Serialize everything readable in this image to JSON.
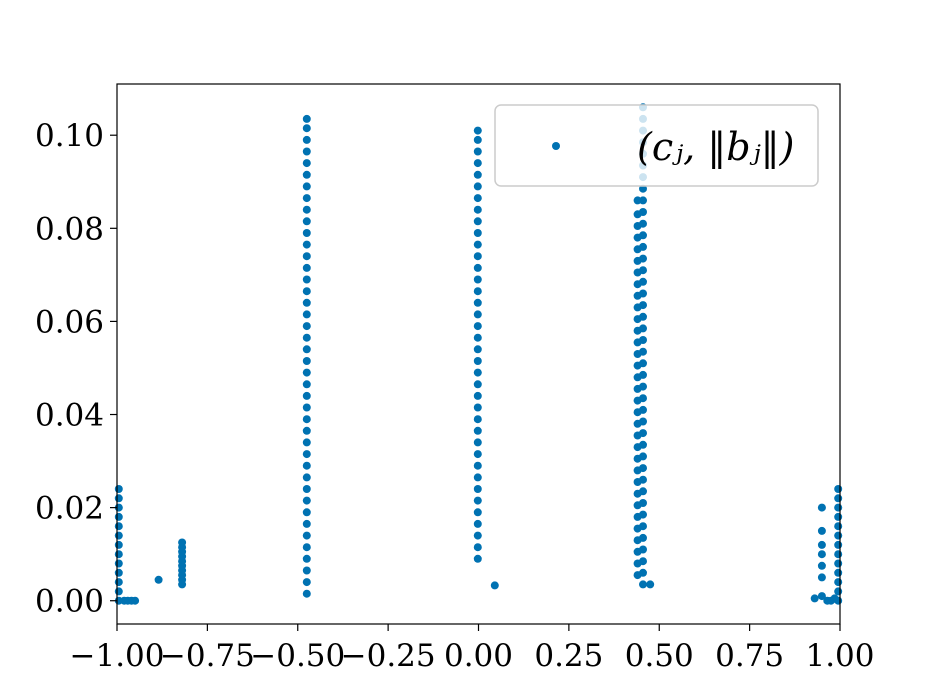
{
  "chart_data": {
    "type": "scatter",
    "title": "",
    "xlabel": "",
    "ylabel": "",
    "xlim": [
      -1.0,
      1.0
    ],
    "ylim": [
      -0.005,
      0.111
    ],
    "grid": false,
    "legend_position": "top-right",
    "marker_color": "#0072b2",
    "x_ticks": [
      -1.0,
      -0.75,
      -0.5,
      -0.25,
      0.0,
      0.25,
      0.5,
      0.75,
      1.0
    ],
    "x_tick_labels": [
      "−1.00",
      "−0.75",
      "−0.50",
      "−0.25",
      "0.00",
      "0.25",
      "0.50",
      "0.75",
      "1.00"
    ],
    "y_ticks": [
      0.0,
      0.02,
      0.04,
      0.06,
      0.08,
      0.1
    ],
    "y_tick_labels": [
      "0.00",
      "0.02",
      "0.04",
      "0.06",
      "0.08",
      "0.10"
    ],
    "series": [
      {
        "name": "(cⱼ, ‖bⱼ‖)",
        "points": [
          [
            -0.995,
            0.0
          ],
          [
            -0.995,
            0.002
          ],
          [
            -0.995,
            0.004
          ],
          [
            -0.995,
            0.006
          ],
          [
            -0.995,
            0.008
          ],
          [
            -0.995,
            0.01
          ],
          [
            -0.995,
            0.012
          ],
          [
            -0.995,
            0.014
          ],
          [
            -0.995,
            0.016
          ],
          [
            -0.995,
            0.018
          ],
          [
            -0.995,
            0.02
          ],
          [
            -0.995,
            0.022
          ],
          [
            -0.995,
            0.024
          ],
          [
            -0.98,
            0.0
          ],
          [
            -0.97,
            0.0
          ],
          [
            -0.96,
            0.0
          ],
          [
            -0.95,
            0.0
          ],
          [
            -0.885,
            0.0045
          ],
          [
            -0.82,
            0.0035
          ],
          [
            -0.82,
            0.0045
          ],
          [
            -0.82,
            0.0055
          ],
          [
            -0.82,
            0.0065
          ],
          [
            -0.82,
            0.0075
          ],
          [
            -0.82,
            0.0085
          ],
          [
            -0.82,
            0.0095
          ],
          [
            -0.82,
            0.0105
          ],
          [
            -0.82,
            0.0115
          ],
          [
            -0.82,
            0.0125
          ],
          [
            -0.475,
            0.0015
          ],
          [
            -0.475,
            0.004
          ],
          [
            -0.475,
            0.0065
          ],
          [
            -0.475,
            0.009
          ],
          [
            -0.475,
            0.0115
          ],
          [
            -0.475,
            0.014
          ],
          [
            -0.475,
            0.0165
          ],
          [
            -0.475,
            0.019
          ],
          [
            -0.475,
            0.0215
          ],
          [
            -0.475,
            0.024
          ],
          [
            -0.475,
            0.0265
          ],
          [
            -0.475,
            0.029
          ],
          [
            -0.475,
            0.0315
          ],
          [
            -0.475,
            0.034
          ],
          [
            -0.475,
            0.0365
          ],
          [
            -0.475,
            0.039
          ],
          [
            -0.475,
            0.0415
          ],
          [
            -0.475,
            0.044
          ],
          [
            -0.475,
            0.0465
          ],
          [
            -0.475,
            0.049
          ],
          [
            -0.475,
            0.0515
          ],
          [
            -0.475,
            0.054
          ],
          [
            -0.475,
            0.0565
          ],
          [
            -0.475,
            0.059
          ],
          [
            -0.475,
            0.0615
          ],
          [
            -0.475,
            0.064
          ],
          [
            -0.475,
            0.0665
          ],
          [
            -0.475,
            0.069
          ],
          [
            -0.475,
            0.0715
          ],
          [
            -0.475,
            0.074
          ],
          [
            -0.475,
            0.0765
          ],
          [
            -0.475,
            0.079
          ],
          [
            -0.475,
            0.0815
          ],
          [
            -0.475,
            0.084
          ],
          [
            -0.475,
            0.0865
          ],
          [
            -0.475,
            0.089
          ],
          [
            -0.475,
            0.0915
          ],
          [
            -0.475,
            0.094
          ],
          [
            -0.475,
            0.0965
          ],
          [
            -0.475,
            0.099
          ],
          [
            -0.475,
            0.1015
          ],
          [
            -0.475,
            0.1035
          ],
          [
            -0.002,
            0.009
          ],
          [
            -0.002,
            0.0115
          ],
          [
            -0.002,
            0.014
          ],
          [
            -0.002,
            0.0165
          ],
          [
            -0.002,
            0.019
          ],
          [
            -0.002,
            0.0215
          ],
          [
            -0.002,
            0.024
          ],
          [
            -0.002,
            0.0265
          ],
          [
            -0.002,
            0.029
          ],
          [
            -0.002,
            0.0315
          ],
          [
            -0.002,
            0.034
          ],
          [
            -0.002,
            0.0365
          ],
          [
            -0.002,
            0.039
          ],
          [
            -0.002,
            0.0415
          ],
          [
            -0.002,
            0.044
          ],
          [
            -0.002,
            0.0465
          ],
          [
            -0.002,
            0.049
          ],
          [
            -0.002,
            0.0515
          ],
          [
            -0.002,
            0.054
          ],
          [
            -0.002,
            0.0565
          ],
          [
            -0.002,
            0.059
          ],
          [
            -0.002,
            0.0615
          ],
          [
            -0.002,
            0.064
          ],
          [
            -0.002,
            0.0665
          ],
          [
            -0.002,
            0.069
          ],
          [
            -0.002,
            0.0715
          ],
          [
            -0.002,
            0.074
          ],
          [
            -0.002,
            0.0765
          ],
          [
            -0.002,
            0.079
          ],
          [
            -0.002,
            0.0815
          ],
          [
            -0.002,
            0.084
          ],
          [
            -0.002,
            0.0865
          ],
          [
            -0.002,
            0.089
          ],
          [
            -0.002,
            0.0915
          ],
          [
            -0.002,
            0.094
          ],
          [
            -0.002,
            0.0965
          ],
          [
            -0.002,
            0.099
          ],
          [
            -0.002,
            0.101
          ],
          [
            0.045,
            0.0033
          ],
          [
            0.44,
            0.0055
          ],
          [
            0.44,
            0.008
          ],
          [
            0.44,
            0.0105
          ],
          [
            0.44,
            0.013
          ],
          [
            0.44,
            0.0155
          ],
          [
            0.44,
            0.018
          ],
          [
            0.44,
            0.0205
          ],
          [
            0.44,
            0.023
          ],
          [
            0.44,
            0.0255
          ],
          [
            0.44,
            0.028
          ],
          [
            0.44,
            0.0305
          ],
          [
            0.44,
            0.033
          ],
          [
            0.44,
            0.0355
          ],
          [
            0.44,
            0.038
          ],
          [
            0.44,
            0.0405
          ],
          [
            0.44,
            0.043
          ],
          [
            0.44,
            0.0455
          ],
          [
            0.44,
            0.048
          ],
          [
            0.44,
            0.0505
          ],
          [
            0.44,
            0.053
          ],
          [
            0.44,
            0.0555
          ],
          [
            0.44,
            0.058
          ],
          [
            0.44,
            0.0605
          ],
          [
            0.44,
            0.063
          ],
          [
            0.44,
            0.0655
          ],
          [
            0.44,
            0.068
          ],
          [
            0.44,
            0.0705
          ],
          [
            0.44,
            0.073
          ],
          [
            0.44,
            0.0755
          ],
          [
            0.44,
            0.078
          ],
          [
            0.44,
            0.0805
          ],
          [
            0.44,
            0.083
          ],
          [
            0.44,
            0.086
          ],
          [
            0.455,
            0.0035
          ],
          [
            0.455,
            0.006
          ],
          [
            0.455,
            0.0085
          ],
          [
            0.455,
            0.011
          ],
          [
            0.455,
            0.0135
          ],
          [
            0.455,
            0.016
          ],
          [
            0.455,
            0.0185
          ],
          [
            0.455,
            0.021
          ],
          [
            0.455,
            0.0235
          ],
          [
            0.455,
            0.026
          ],
          [
            0.455,
            0.0285
          ],
          [
            0.455,
            0.031
          ],
          [
            0.455,
            0.0335
          ],
          [
            0.455,
            0.036
          ],
          [
            0.455,
            0.0385
          ],
          [
            0.455,
            0.041
          ],
          [
            0.455,
            0.0435
          ],
          [
            0.455,
            0.046
          ],
          [
            0.455,
            0.0485
          ],
          [
            0.455,
            0.051
          ],
          [
            0.455,
            0.0535
          ],
          [
            0.455,
            0.056
          ],
          [
            0.455,
            0.0585
          ],
          [
            0.455,
            0.061
          ],
          [
            0.455,
            0.0635
          ],
          [
            0.455,
            0.066
          ],
          [
            0.455,
            0.0685
          ],
          [
            0.455,
            0.071
          ],
          [
            0.455,
            0.0735
          ],
          [
            0.455,
            0.076
          ],
          [
            0.455,
            0.0785
          ],
          [
            0.455,
            0.081
          ],
          [
            0.455,
            0.0835
          ],
          [
            0.455,
            0.086
          ],
          [
            0.455,
            0.0885
          ],
          [
            0.455,
            0.091
          ],
          [
            0.455,
            0.0935
          ],
          [
            0.455,
            0.096
          ],
          [
            0.455,
            0.0985
          ],
          [
            0.455,
            0.101
          ],
          [
            0.455,
            0.1035
          ],
          [
            0.455,
            0.106
          ],
          [
            0.475,
            0.0035
          ],
          [
            0.93,
            0.0005
          ],
          [
            0.95,
            0.001
          ],
          [
            0.95,
            0.005
          ],
          [
            0.95,
            0.0075
          ],
          [
            0.95,
            0.01
          ],
          [
            0.95,
            0.012
          ],
          [
            0.95,
            0.015
          ],
          [
            0.95,
            0.02
          ],
          [
            0.965,
            0.0
          ],
          [
            0.975,
            0.0
          ],
          [
            0.985,
            0.0005
          ],
          [
            0.995,
            0.0
          ],
          [
            0.995,
            0.002
          ],
          [
            0.995,
            0.004
          ],
          [
            0.995,
            0.006
          ],
          [
            0.995,
            0.008
          ],
          [
            0.995,
            0.01
          ],
          [
            0.995,
            0.012
          ],
          [
            0.995,
            0.014
          ],
          [
            0.995,
            0.016
          ],
          [
            0.995,
            0.018
          ],
          [
            0.995,
            0.02
          ],
          [
            0.995,
            0.022
          ],
          [
            0.995,
            0.024
          ]
        ]
      }
    ]
  }
}
